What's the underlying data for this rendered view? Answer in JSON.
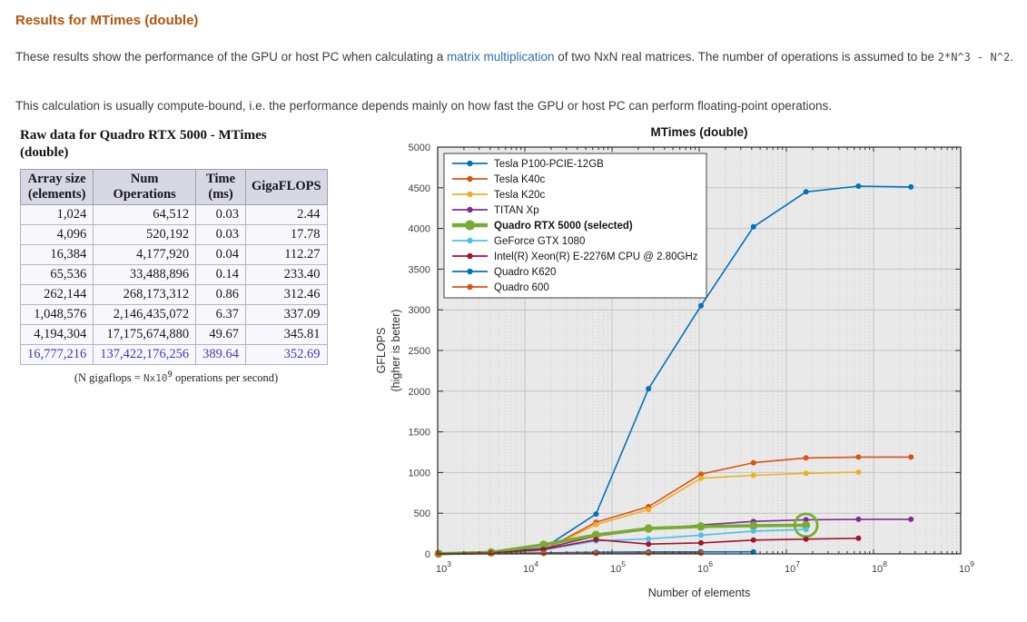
{
  "heading": "Results for MTimes (double)",
  "intro": {
    "before_link": "These results show the performance of the GPU or host PC when calculating a ",
    "link_text": "matrix multiplication",
    "after_link": " of two NxN real matrices. The number of operations is assumed to be ",
    "formula": "2*N^3 - N^2",
    "after_formula": "."
  },
  "para2": "This calculation is usually compute-bound, i.e. the performance depends mainly on how fast the GPU or host PC can perform floating-point operations.",
  "table": {
    "title": "Raw data for Quadro RTX 5000 - MTimes (double)",
    "columns": [
      "Array size\n(elements)",
      "Num\nOperations",
      "Time\n(ms)",
      "GigaFLOPS"
    ],
    "rows": [
      [
        "1,024",
        "64,512",
        "0.03",
        "2.44"
      ],
      [
        "4,096",
        "520,192",
        "0.03",
        "17.78"
      ],
      [
        "16,384",
        "4,177,920",
        "0.04",
        "112.27"
      ],
      [
        "65,536",
        "33,488,896",
        "0.14",
        "233.40"
      ],
      [
        "262,144",
        "268,173,312",
        "0.86",
        "312.46"
      ],
      [
        "1,048,576",
        "2,146,435,072",
        "6.37",
        "337.09"
      ],
      [
        "4,194,304",
        "17,175,674,880",
        "49.67",
        "345.81"
      ],
      [
        "16,777,216",
        "137,422,176,256",
        "389.64",
        "352.69"
      ]
    ],
    "selected_row_index": 7,
    "caption": {
      "before": "(N gigaflops = ",
      "code": "Nx10",
      "sup": "9",
      "after": " operations per second)"
    }
  },
  "chart_data": {
    "type": "line",
    "title": "MTimes (double)",
    "xlabel": "Number of elements",
    "ylabel_line1": "GFLOPS",
    "ylabel_line2": "(higher is better)",
    "x_scale": "log",
    "xlim": [
      1000,
      1000000000
    ],
    "ylim": [
      0,
      5000
    ],
    "x_ticks": [
      "10^3",
      "10^4",
      "10^5",
      "10^6",
      "10^7",
      "10^8",
      "10^9"
    ],
    "y_ticks": [
      0,
      500,
      1000,
      1500,
      2000,
      2500,
      3000,
      3500,
      4000,
      4500,
      5000
    ],
    "grid": true,
    "minor_grid": true,
    "legend_position": "top-left",
    "colors": {
      "plot_bg": "#e9e9e9",
      "grid_major": "#c3c3c3",
      "grid_minor": "#cbcbcb",
      "axis": "#2b2b2b",
      "legend_bg": "#ffffff",
      "legend_border": "#404040",
      "selected_accent": "#77AC30"
    },
    "series": [
      {
        "name": "Tesla P100-PCIE-12GB",
        "color": "#0072BD",
        "x": [
          1024,
          4096,
          16384,
          65536,
          262144,
          1048576,
          4194304,
          16777216,
          67108864,
          268435456
        ],
        "y": [
          2,
          16,
          70,
          490,
          2030,
          3050,
          4020,
          4450,
          4520,
          4510
        ]
      },
      {
        "name": "Tesla K40c",
        "color": "#D95319",
        "x": [
          1024,
          4096,
          16384,
          65536,
          262144,
          1048576,
          4194304,
          16777216,
          67108864,
          268435456
        ],
        "y": [
          1,
          9,
          45,
          390,
          580,
          980,
          1120,
          1180,
          1190,
          1190
        ]
      },
      {
        "name": "Tesla K20c",
        "color": "#EDB120",
        "x": [
          1024,
          4096,
          16384,
          65536,
          262144,
          1048576,
          4194304,
          16777216,
          67108864
        ],
        "y": [
          1,
          8,
          40,
          360,
          545,
          930,
          965,
          990,
          1005
        ]
      },
      {
        "name": "TITAN Xp",
        "color": "#7E2F8E",
        "x": [
          1024,
          4096,
          16384,
          65536,
          262144,
          1048576,
          4194304,
          16777216,
          67108864,
          268435456
        ],
        "y": [
          2,
          14,
          65,
          220,
          300,
          355,
          400,
          420,
          425,
          425
        ]
      },
      {
        "name": "Quadro RTX 5000 (selected)",
        "color": "#77AC30",
        "bold": true,
        "thick": true,
        "highlight_last": true,
        "x": [
          1024,
          4096,
          16384,
          65536,
          262144,
          1048576,
          4194304,
          16777216
        ],
        "y": [
          2.44,
          17.78,
          112.27,
          233.4,
          312.46,
          337.09,
          345.81,
          352.69
        ]
      },
      {
        "name": "GeForce GTX 1080",
        "color": "#4DBEEE",
        "x": [
          1024,
          4096,
          16384,
          65536,
          262144,
          1048576,
          4194304,
          16777216
        ],
        "y": [
          2,
          10,
          48,
          160,
          185,
          230,
          280,
          300
        ]
      },
      {
        "name": "Intel(R) Xeon(R) E-2276M  CPU @ 2.80GHz",
        "color": "#A2142F",
        "x": [
          1024,
          4096,
          16384,
          65536,
          262144,
          1048576,
          4194304,
          16777216,
          67108864
        ],
        "y": [
          2,
          12,
          55,
          175,
          120,
          135,
          170,
          182,
          192
        ]
      },
      {
        "name": "Quadro K620",
        "color": "#0072BD",
        "x": [
          1024,
          4096,
          16384,
          65536,
          262144,
          1048576,
          4194304
        ],
        "y": [
          1,
          4,
          12,
          20,
          24,
          25,
          26
        ]
      },
      {
        "name": "Quadro 600",
        "color": "#D95319",
        "x": [
          1024,
          4096,
          16384,
          65536,
          262144,
          1048576
        ],
        "y": [
          0.5,
          2,
          5,
          7,
          8,
          8
        ]
      }
    ]
  }
}
